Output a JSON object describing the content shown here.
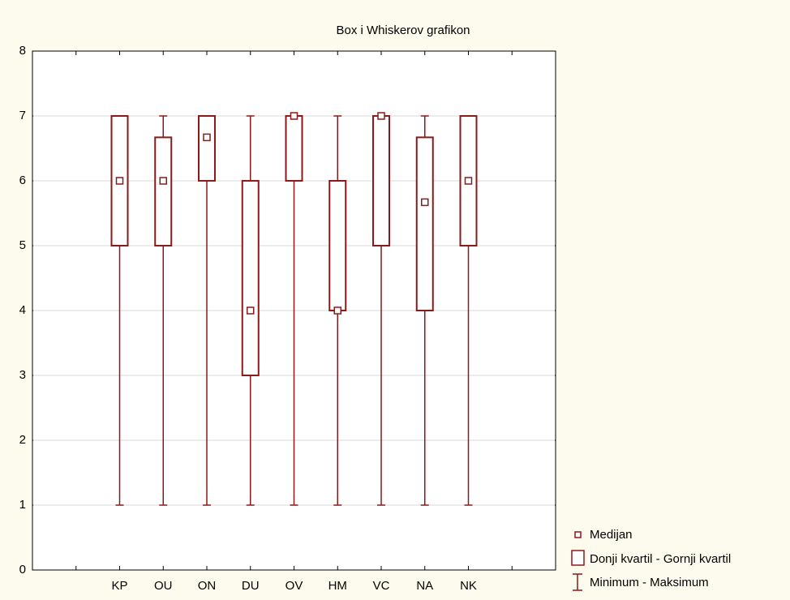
{
  "chart_data": {
    "type": "box",
    "title": "Box i Whiskerov grafikon",
    "categories": [
      "KP",
      "OU",
      "ON",
      "DU",
      "OV",
      "HM",
      "VC",
      "NA",
      "NK"
    ],
    "min": [
      1,
      1,
      1,
      1,
      1,
      1,
      1,
      1,
      1
    ],
    "q1": [
      5,
      5,
      6,
      3,
      6,
      4,
      5,
      4,
      5
    ],
    "median": [
      6,
      6,
      6.67,
      4,
      7,
      4,
      7,
      5.67,
      6
    ],
    "q3": [
      7,
      6.67,
      7,
      6,
      7,
      6,
      7,
      6.67,
      7
    ],
    "max": [
      7,
      7,
      7,
      7,
      7,
      7,
      7,
      7,
      7
    ],
    "color": "#8b1a1a",
    "legend": {
      "median": "Medijan",
      "box": "Donji kvartil - Gornji kvartil",
      "whisker": "Minimum - Maksimum"
    },
    "ylim": [
      0,
      8
    ],
    "yticks": [
      0,
      1,
      2,
      3,
      4,
      5,
      6,
      7,
      8
    ],
    "grid": true
  }
}
